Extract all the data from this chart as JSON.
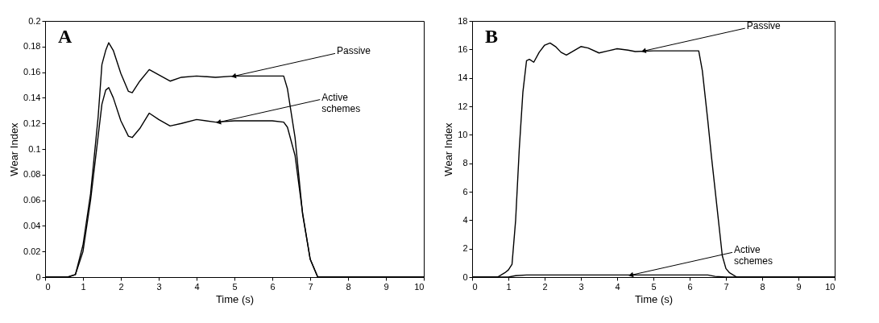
{
  "chart_data": [
    {
      "type": "line",
      "title": "A",
      "xlabel": "Time (s)",
      "ylabel": "Wear Index",
      "xlim": [
        0,
        10
      ],
      "ylim": [
        0,
        0.2
      ],
      "xticks": [
        0,
        1,
        2,
        3,
        4,
        5,
        6,
        7,
        8,
        9,
        10
      ],
      "yticks": [
        0,
        0.02,
        0.04,
        0.06,
        0.08,
        0.1,
        0.12,
        0.14,
        0.16,
        0.18,
        0.2
      ],
      "line_style": "solid",
      "x": [
        0,
        0.6,
        0.8,
        1.0,
        1.2,
        1.4,
        1.5,
        1.6,
        1.68,
        1.8,
        2.0,
        2.2,
        2.3,
        2.5,
        2.75,
        3.0,
        3.3,
        3.6,
        4.0,
        4.5,
        5.0,
        6.0,
        6.3,
        6.4,
        6.6,
        6.8,
        7.0,
        7.2,
        7.5,
        8.0,
        10
      ],
      "series": [
        {
          "color": "#000000",
          "values": [
            0,
            0,
            0.002,
            0.025,
            0.065,
            0.125,
            0.166,
            0.177,
            0.183,
            0.177,
            0.159,
            0.145,
            0.144,
            0.153,
            0.162,
            0.158,
            0.153,
            0.156,
            0.157,
            0.156,
            0.157,
            0.157,
            0.157,
            0.147,
            0.109,
            0.049,
            0.014,
            0,
            0,
            0,
            0
          ]
        },
        {
          "color": "#000000",
          "values": [
            0,
            0,
            0.002,
            0.02,
            0.06,
            0.11,
            0.135,
            0.146,
            0.148,
            0.14,
            0.122,
            0.11,
            0.109,
            0.116,
            0.128,
            0.123,
            0.118,
            0.12,
            0.123,
            0.121,
            0.122,
            0.122,
            0.121,
            0.117,
            0.095,
            0.05,
            0.014,
            0,
            0,
            0,
            0
          ]
        }
      ],
      "annotations": [
        {
          "text": "Passive",
          "x": 5.0,
          "y": 0.157
        },
        {
          "text": "Active schemes",
          "x": 4.6,
          "y": 0.121
        }
      ]
    },
    {
      "type": "line",
      "title": "B",
      "xlabel": "Time (s)",
      "ylabel": "Wear Index",
      "xlim": [
        0,
        10
      ],
      "ylim": [
        0,
        18
      ],
      "xticks": [
        0,
        1,
        2,
        3,
        4,
        5,
        6,
        7,
        8,
        9,
        10
      ],
      "yticks": [
        0,
        2,
        4,
        6,
        8,
        10,
        12,
        14,
        16,
        18
      ],
      "line_style": "solid",
      "series": [
        {
          "color": "#000000",
          "x": [
            0,
            0.7,
            0.9,
            1.0,
            1.1,
            1.2,
            1.3,
            1.4,
            1.5,
            1.58,
            1.7,
            1.85,
            2.0,
            2.15,
            2.3,
            2.45,
            2.6,
            2.8,
            3.0,
            3.2,
            3.5,
            3.75,
            4.0,
            4.3,
            4.5,
            5.0,
            5.5,
            6.0,
            6.25,
            6.35,
            6.5,
            6.6,
            6.75,
            6.9,
            7.0,
            7.1,
            7.3,
            10
          ],
          "values": [
            0,
            0,
            0.3,
            0.5,
            0.9,
            4,
            9,
            13,
            15.2,
            15.3,
            15.1,
            15.8,
            16.3,
            16.45,
            16.2,
            15.8,
            15.6,
            15.9,
            16.2,
            16.1,
            15.75,
            15.9,
            16.05,
            15.95,
            15.85,
            15.9,
            15.9,
            15.9,
            15.9,
            14.5,
            11,
            8.5,
            5,
            1.5,
            0.6,
            0.3,
            0,
            0
          ]
        },
        {
          "color": "#000000",
          "x": [
            0,
            1.0,
            1.2,
            1.5,
            6.5,
            6.7,
            7.0,
            10
          ],
          "values": [
            0,
            0,
            0.1,
            0.15,
            0.15,
            0.05,
            0,
            0
          ]
        }
      ],
      "annotations": [
        {
          "text": "Passive",
          "x": 4.75,
          "y": 15.9
        },
        {
          "text": "Active schemes",
          "x": 4.4,
          "y": 0.15
        }
      ]
    }
  ]
}
